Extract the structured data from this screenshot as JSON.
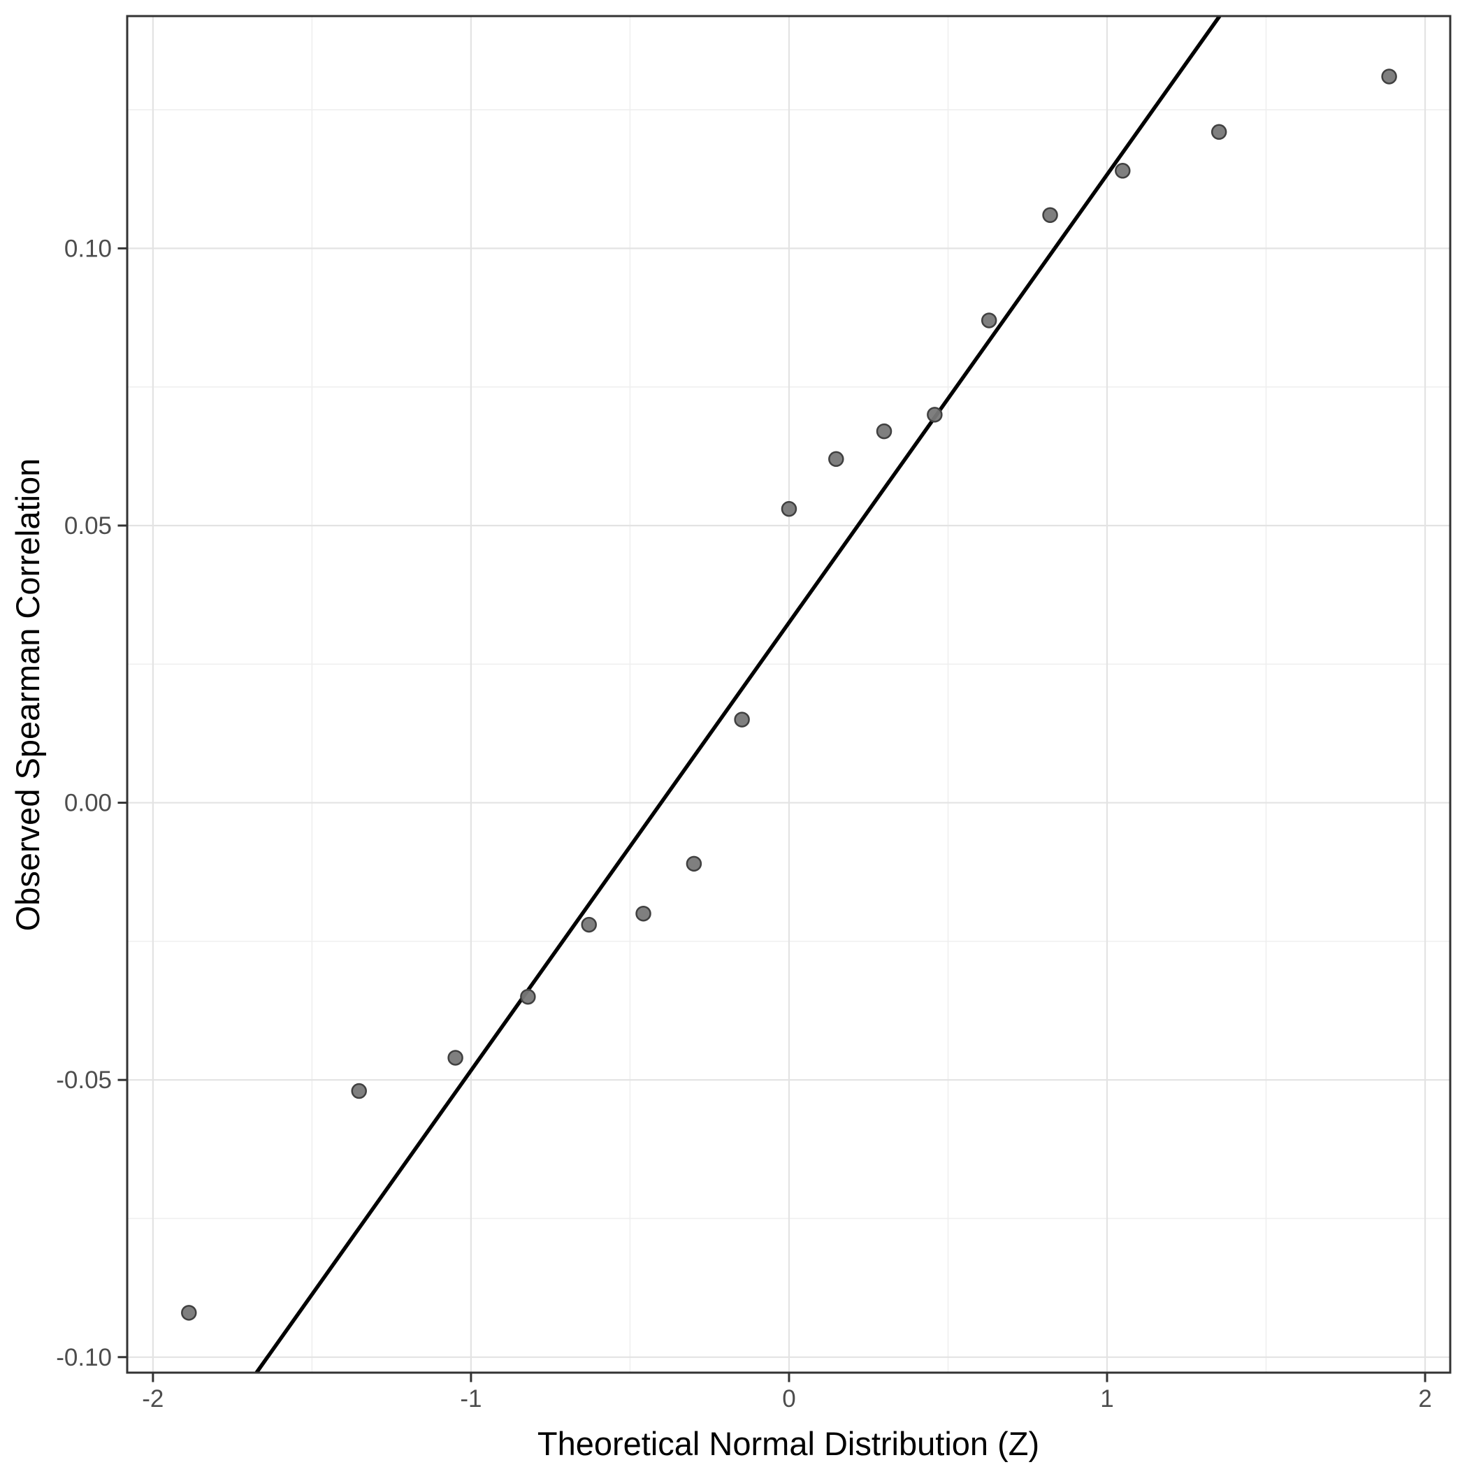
{
  "chart_data": {
    "type": "scatter",
    "title": "",
    "xlabel": "Theoretical Normal Distribution (Z)",
    "ylabel": "Observed Spearman Correlation",
    "legend": "none",
    "grid": "major+minor",
    "xlim": [
      -2.081,
      2.079
    ],
    "ylim": [
      -0.1028,
      0.1419
    ],
    "x_ticks": [
      -2,
      -1,
      0,
      1,
      2
    ],
    "x_tick_labels": [
      "-2",
      "-1",
      "0",
      "1",
      "2"
    ],
    "x_minor_ticks": [
      -1.5,
      -0.5,
      0.5,
      1.5
    ],
    "y_ticks": [
      0.1,
      0.05,
      0.0,
      -0.05,
      -0.1
    ],
    "y_tick_labels": [
      "0.10",
      "0.05",
      "0.00",
      "-0.05",
      "-0.10"
    ],
    "y_minor_ticks": [
      0.125,
      0.075,
      0.025,
      -0.025,
      -0.075
    ],
    "points": [
      {
        "x": -1.887,
        "y": -0.092
      },
      {
        "x": -1.352,
        "y": -0.052
      },
      {
        "x": -1.049,
        "y": -0.046
      },
      {
        "x": -0.821,
        "y": -0.035
      },
      {
        "x": -0.629,
        "y": -0.022
      },
      {
        "x": -0.458,
        "y": -0.02
      },
      {
        "x": -0.299,
        "y": -0.011
      },
      {
        "x": -0.148,
        "y": 0.015
      },
      {
        "x": 0.0,
        "y": 0.053
      },
      {
        "x": 0.148,
        "y": 0.062
      },
      {
        "x": 0.299,
        "y": 0.067
      },
      {
        "x": 0.458,
        "y": 0.07
      },
      {
        "x": 0.629,
        "y": 0.087
      },
      {
        "x": 0.821,
        "y": 0.106
      },
      {
        "x": 1.049,
        "y": 0.114
      },
      {
        "x": 1.352,
        "y": 0.121
      },
      {
        "x": 1.887,
        "y": 0.131
      }
    ],
    "reference_line": {
      "kind": "qq-line",
      "slope": 0.0808,
      "intercept": 0.0325
    },
    "colors": {
      "background": "#ffffff",
      "panel_background": "#ffffff",
      "panel_border": "#333333",
      "grid_major": "#e3e3e3",
      "grid_minor": "#efefef",
      "point_fill": "#787878",
      "point_stroke": "#404040",
      "reference_line": "#000000",
      "tick_mark": "#333333",
      "tick_label": "#4d4d4d",
      "axis_title": "#000000"
    }
  }
}
